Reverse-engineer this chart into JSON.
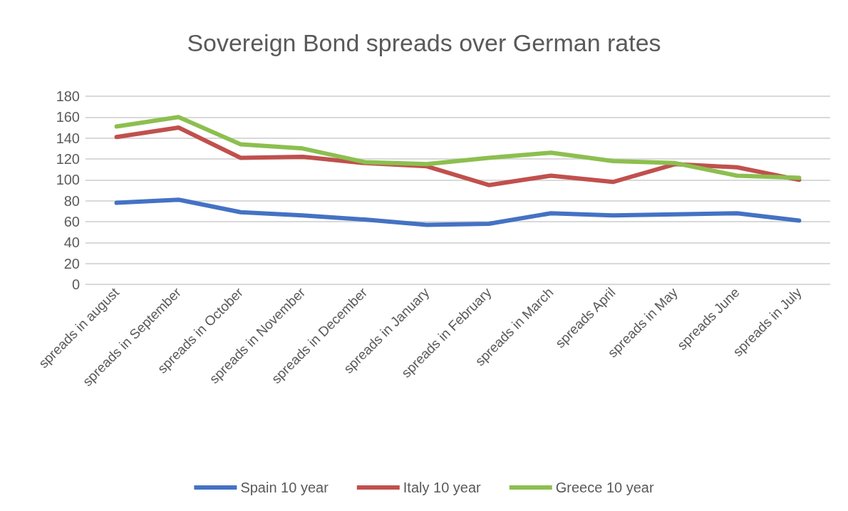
{
  "chart_data": {
    "type": "line",
    "title": "Sovereign Bond spreads over German rates",
    "categories": [
      "spreads in august",
      "spreads in September",
      "spreads in October",
      "spreads in November",
      "spreads in December",
      "spreads in January",
      "spreads in February",
      "spreads in March",
      "spreads April",
      "spreads in May",
      "spreads June",
      "spreads in July"
    ],
    "series": [
      {
        "name": "Spain 10 year",
        "color": "#4472c4",
        "values": [
          78,
          81,
          69,
          66,
          62,
          57,
          58,
          68,
          66,
          67,
          68,
          61
        ]
      },
      {
        "name": "Italy 10 year",
        "color": "#c0504d",
        "values": [
          141,
          150,
          121,
          122,
          116,
          113,
          95,
          104,
          98,
          115,
          112,
          100
        ]
      },
      {
        "name": "Greece 10 year",
        "color": "#8cbf4f",
        "values": [
          151,
          160,
          134,
          130,
          117,
          115,
          121,
          126,
          118,
          116,
          104,
          102
        ]
      }
    ],
    "ylim": [
      0,
      180
    ],
    "yticks": [
      0,
      20,
      40,
      60,
      80,
      100,
      120,
      140,
      160,
      180
    ],
    "grid": "y",
    "legend": "bottom",
    "marker": "none",
    "line_style": "solid"
  }
}
